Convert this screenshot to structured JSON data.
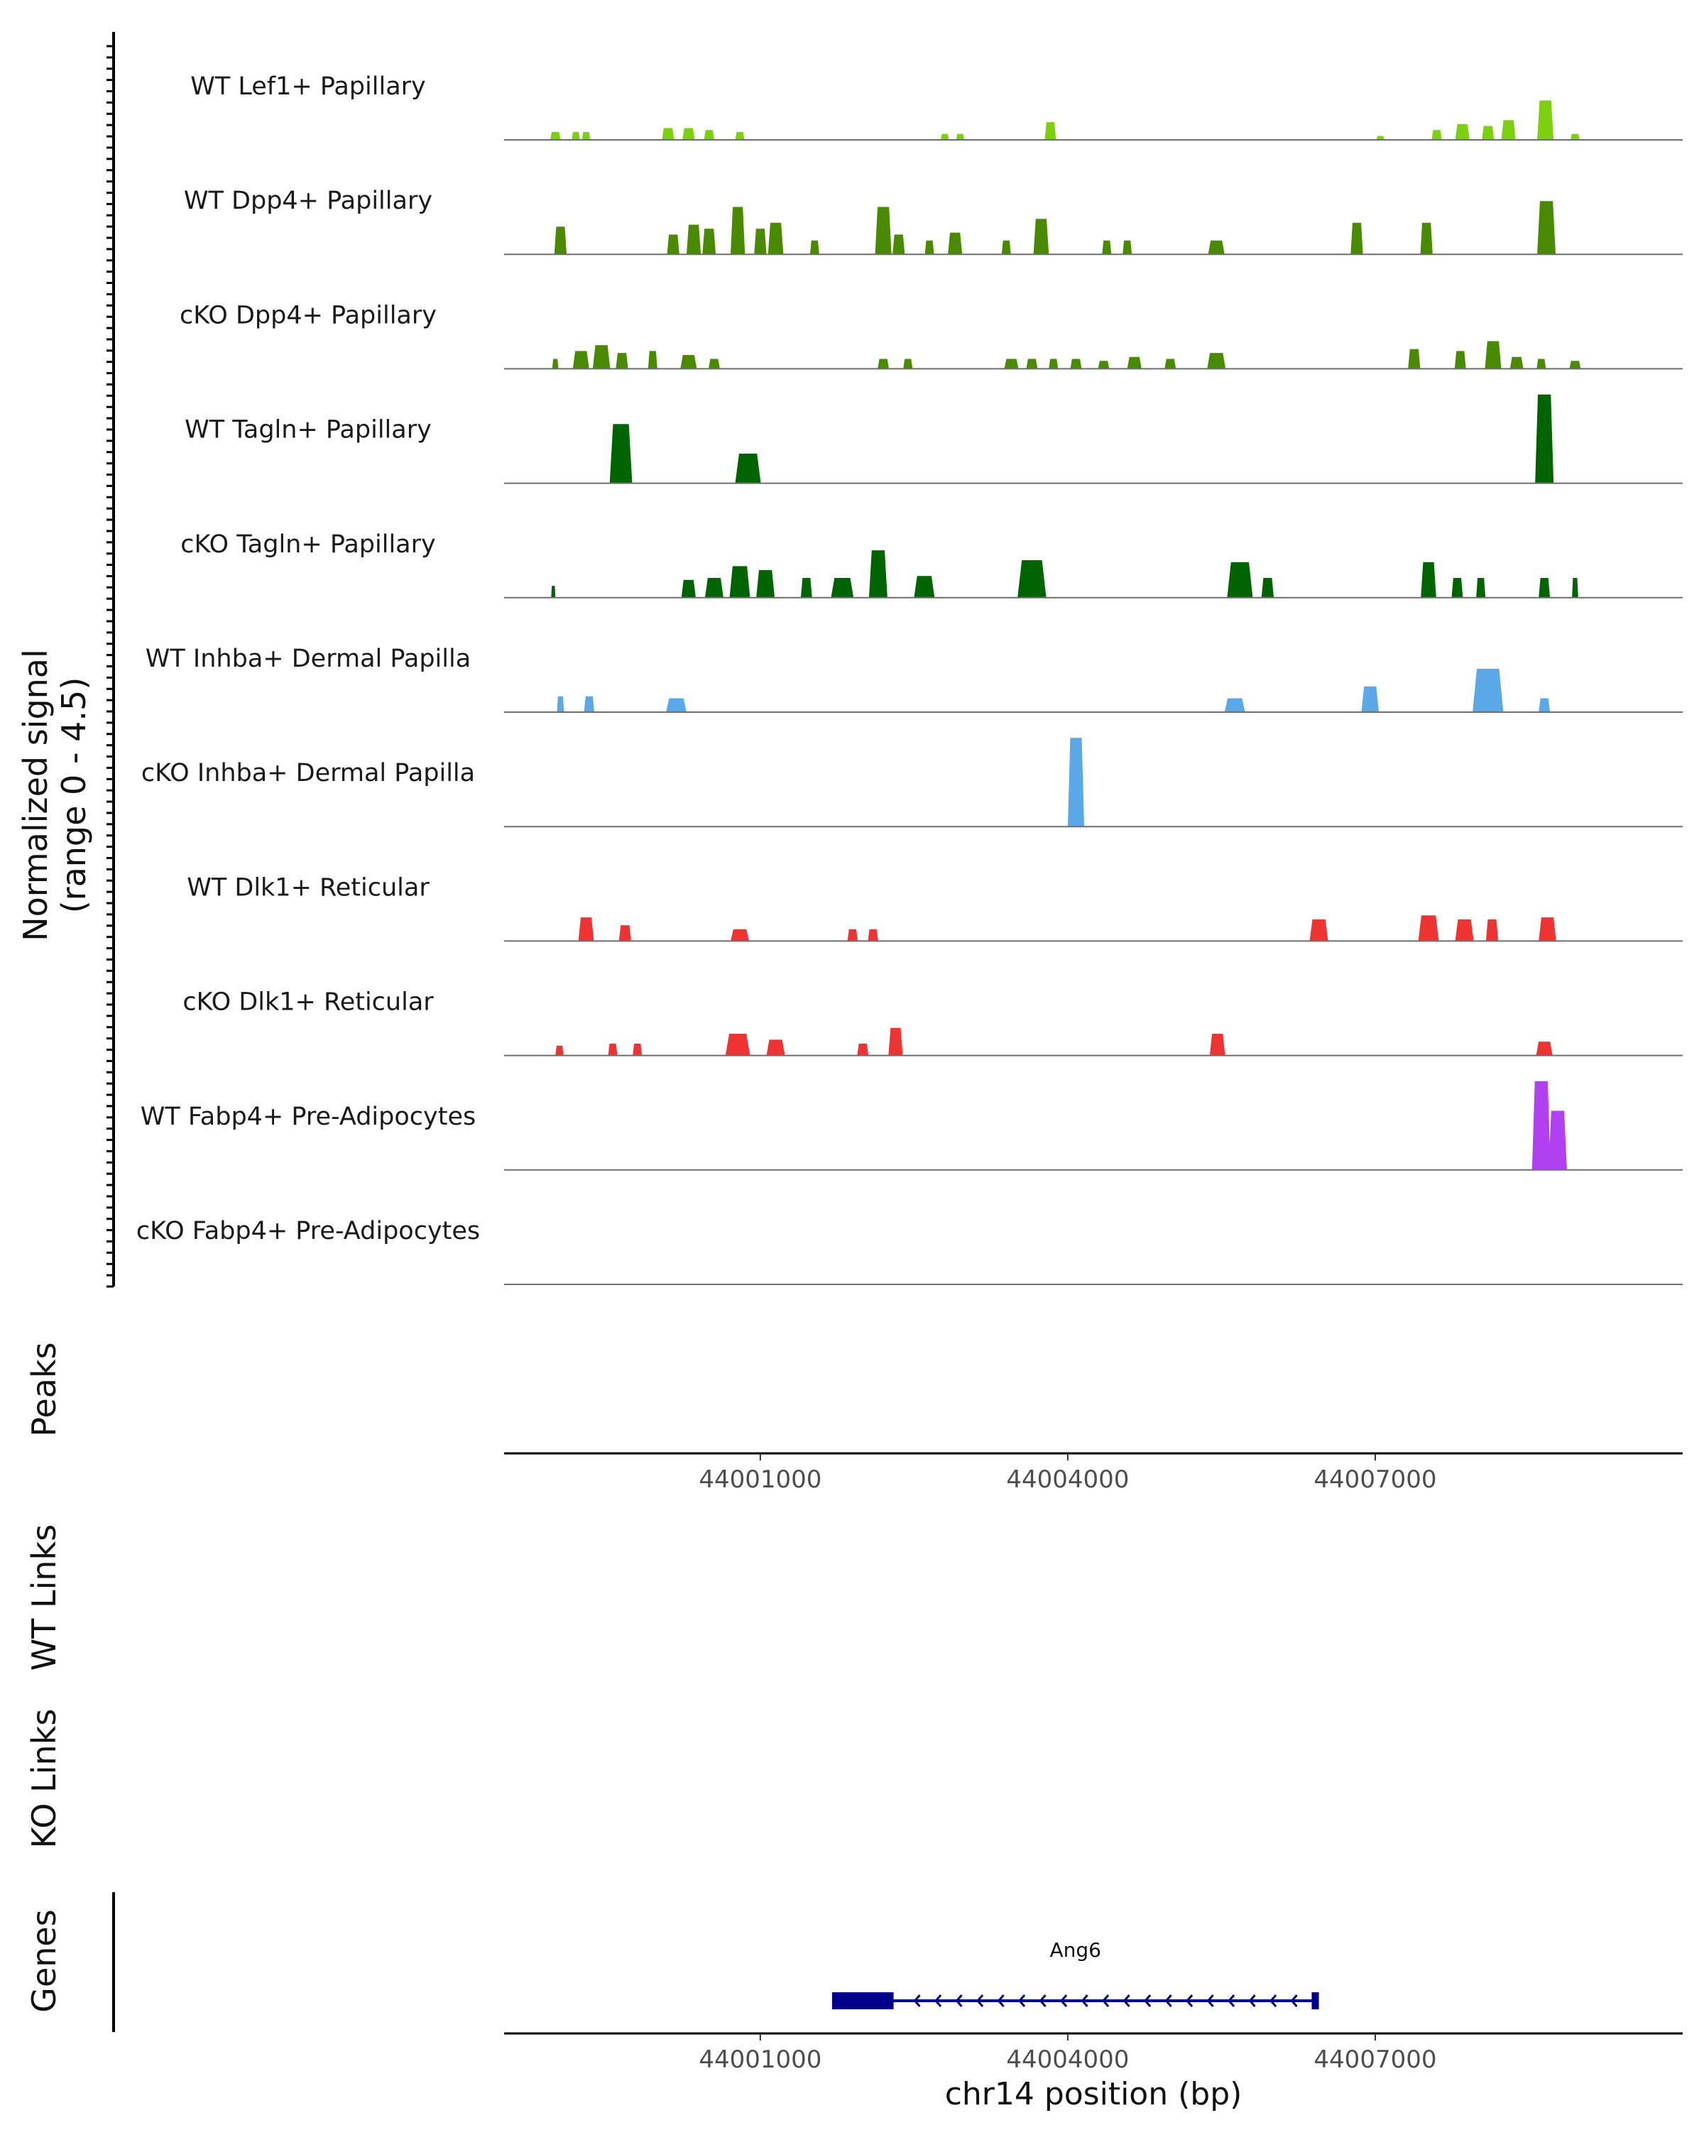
{
  "chart_data": {
    "type": "area",
    "title": "",
    "ylabel_line1": "Normalized signal",
    "ylabel_line2": "(range 0 - 4.5)",
    "ylim": [
      0,
      4.5
    ],
    "xlim": [
      43998500,
      44010000
    ],
    "xlabel": "chr14 position (bp)",
    "x_ticks": [
      44001000,
      44004000,
      44007000
    ],
    "x_tick_labels": [
      "44001000",
      "44004000",
      "44007000"
    ],
    "tracks": [
      {
        "name": "WT Lef1+ Papillary",
        "color": "#7CD00D",
        "peaks": [
          [
            43999000,
            0.4,
            100
          ],
          [
            43999200,
            0.4,
            80
          ],
          [
            43999300,
            0.4,
            80
          ],
          [
            44000100,
            0.6,
            120
          ],
          [
            44000300,
            0.6,
            120
          ],
          [
            44000500,
            0.5,
            100
          ],
          [
            44000800,
            0.4,
            90
          ],
          [
            44002800,
            0.3,
            80
          ],
          [
            44002950,
            0.3,
            80
          ],
          [
            44003830,
            0.9,
            110
          ],
          [
            44007050,
            0.2,
            80
          ],
          [
            44007600,
            0.5,
            100
          ],
          [
            44007850,
            0.8,
            140
          ],
          [
            44008100,
            0.7,
            120
          ],
          [
            44008300,
            1.0,
            140
          ],
          [
            44008660,
            2.0,
            160
          ],
          [
            44008950,
            0.3,
            90
          ]
        ]
      },
      {
        "name": "WT Dpp4+ Papillary",
        "color": "#4A8A00",
        "peaks": [
          [
            43999050,
            1.4,
            120
          ],
          [
            44000150,
            1.0,
            120
          ],
          [
            44000350,
            1.5,
            140
          ],
          [
            44000500,
            1.3,
            130
          ],
          [
            44000780,
            2.4,
            140
          ],
          [
            44001000,
            1.3,
            120
          ],
          [
            44001150,
            1.6,
            150
          ],
          [
            44001530,
            0.7,
            90
          ],
          [
            44002200,
            2.4,
            160
          ],
          [
            44002350,
            1.0,
            120
          ],
          [
            44002650,
            0.7,
            90
          ],
          [
            44002900,
            1.1,
            140
          ],
          [
            44003400,
            0.7,
            90
          ],
          [
            44003740,
            1.8,
            150
          ],
          [
            44004380,
            0.7,
            90
          ],
          [
            44004580,
            0.7,
            90
          ],
          [
            44005450,
            0.7,
            160
          ],
          [
            44006820,
            1.6,
            120
          ],
          [
            44007500,
            1.6,
            120
          ],
          [
            44008670,
            2.7,
            180
          ]
        ]
      },
      {
        "name": "cKO Dpp4+ Papillary",
        "color": "#4A8A00",
        "peaks": [
          [
            43999000,
            0.5,
            60
          ],
          [
            43999250,
            0.9,
            160
          ],
          [
            43999450,
            1.2,
            170
          ],
          [
            43999650,
            0.8,
            120
          ],
          [
            43999950,
            0.9,
            90
          ],
          [
            44000300,
            0.7,
            160
          ],
          [
            44000550,
            0.5,
            110
          ],
          [
            44002200,
            0.5,
            110
          ],
          [
            44002440,
            0.5,
            90
          ],
          [
            44003450,
            0.5,
            140
          ],
          [
            44003650,
            0.5,
            110
          ],
          [
            44003860,
            0.5,
            90
          ],
          [
            44004080,
            0.5,
            110
          ],
          [
            44004350,
            0.4,
            110
          ],
          [
            44004650,
            0.6,
            140
          ],
          [
            44005000,
            0.5,
            110
          ],
          [
            44005450,
            0.8,
            180
          ],
          [
            44007380,
            1.0,
            120
          ],
          [
            44007830,
            0.9,
            110
          ],
          [
            44008150,
            1.4,
            160
          ],
          [
            44008380,
            0.6,
            130
          ],
          [
            44008620,
            0.5,
            90
          ],
          [
            44008950,
            0.4,
            110
          ]
        ]
      },
      {
        "name": "WT Tagln+ Papillary",
        "color": "#006400",
        "peaks": [
          [
            43999640,
            3.0,
            220
          ],
          [
            44000880,
            1.5,
            250
          ],
          [
            44008650,
            4.5,
            180
          ]
        ]
      },
      {
        "name": "cKO Tagln+ Papillary",
        "color": "#006400",
        "peaks": [
          [
            43998980,
            0.6,
            40
          ],
          [
            44000300,
            0.9,
            140
          ],
          [
            44000550,
            1.0,
            180
          ],
          [
            44000800,
            1.6,
            200
          ],
          [
            44001050,
            1.4,
            180
          ],
          [
            44001450,
            1.0,
            110
          ],
          [
            44001800,
            1.0,
            220
          ],
          [
            44002150,
            2.4,
            180
          ],
          [
            44002600,
            1.1,
            200
          ],
          [
            44003650,
            1.9,
            280
          ],
          [
            44005680,
            1.8,
            250
          ],
          [
            44005950,
            1.0,
            120
          ],
          [
            44007520,
            1.8,
            150
          ],
          [
            44007800,
            1.0,
            110
          ],
          [
            44008030,
            1.0,
            90
          ],
          [
            44008650,
            1.0,
            110
          ],
          [
            44008950,
            1.0,
            60
          ]
        ]
      },
      {
        "name": "WT Inhba+ Dermal Papilla",
        "color": "#5BA8E8",
        "peaks": [
          [
            43999050,
            0.8,
            70
          ],
          [
            43999330,
            0.8,
            100
          ],
          [
            44000180,
            0.7,
            200
          ],
          [
            44005630,
            0.7,
            200
          ],
          [
            44006950,
            1.3,
            170
          ],
          [
            44008100,
            2.2,
            300
          ],
          [
            44008650,
            0.7,
            110
          ]
        ]
      },
      {
        "name": "cKO Inhba+ Dermal Papilla",
        "color": "#5BA8E8",
        "peaks": [
          [
            44004080,
            4.5,
            160
          ]
        ]
      },
      {
        "name": "WT Dlk1+ Reticular",
        "color": "#EE3333",
        "peaks": [
          [
            43999300,
            1.2,
            150
          ],
          [
            43999680,
            0.8,
            120
          ],
          [
            44000800,
            0.6,
            180
          ],
          [
            44001900,
            0.6,
            100
          ],
          [
            44002100,
            0.6,
            100
          ],
          [
            44006450,
            1.1,
            180
          ],
          [
            44007520,
            1.3,
            200
          ],
          [
            44007870,
            1.1,
            180
          ],
          [
            44008140,
            1.1,
            120
          ],
          [
            44008680,
            1.2,
            170
          ]
        ]
      },
      {
        "name": "cKO Dlk1+ Reticular",
        "color": "#EE3333",
        "peaks": [
          [
            43999040,
            0.5,
            80
          ],
          [
            43999560,
            0.6,
            90
          ],
          [
            43999800,
            0.6,
            90
          ],
          [
            44000780,
            1.1,
            240
          ],
          [
            44001150,
            0.8,
            180
          ],
          [
            44002000,
            0.6,
            110
          ],
          [
            44002320,
            1.4,
            140
          ],
          [
            44005460,
            1.1,
            150
          ],
          [
            44008650,
            0.7,
            160
          ]
        ]
      },
      {
        "name": "WT Fabp4+ Pre-Adipocytes",
        "color": "#B040F0",
        "peaks": [
          [
            44008620,
            4.5,
            180
          ],
          [
            44008780,
            3.0,
            180
          ]
        ]
      },
      {
        "name": "cKO Fabp4+ Pre-Adipocytes",
        "color": "#B040F0",
        "peaks": []
      }
    ],
    "panels": {
      "peaks": "Peaks",
      "wt_links": "WT Links",
      "ko_links": "KO Links",
      "genes": "Genes"
    },
    "gene": {
      "name": "Ang6",
      "start": 44001700,
      "end": 44006450,
      "exons": [
        [
          44001700,
          44001950
        ],
        [
          44001950,
          44002300
        ],
        [
          44006380,
          44006450
        ]
      ],
      "strand": "-",
      "color": "#00008B"
    }
  }
}
